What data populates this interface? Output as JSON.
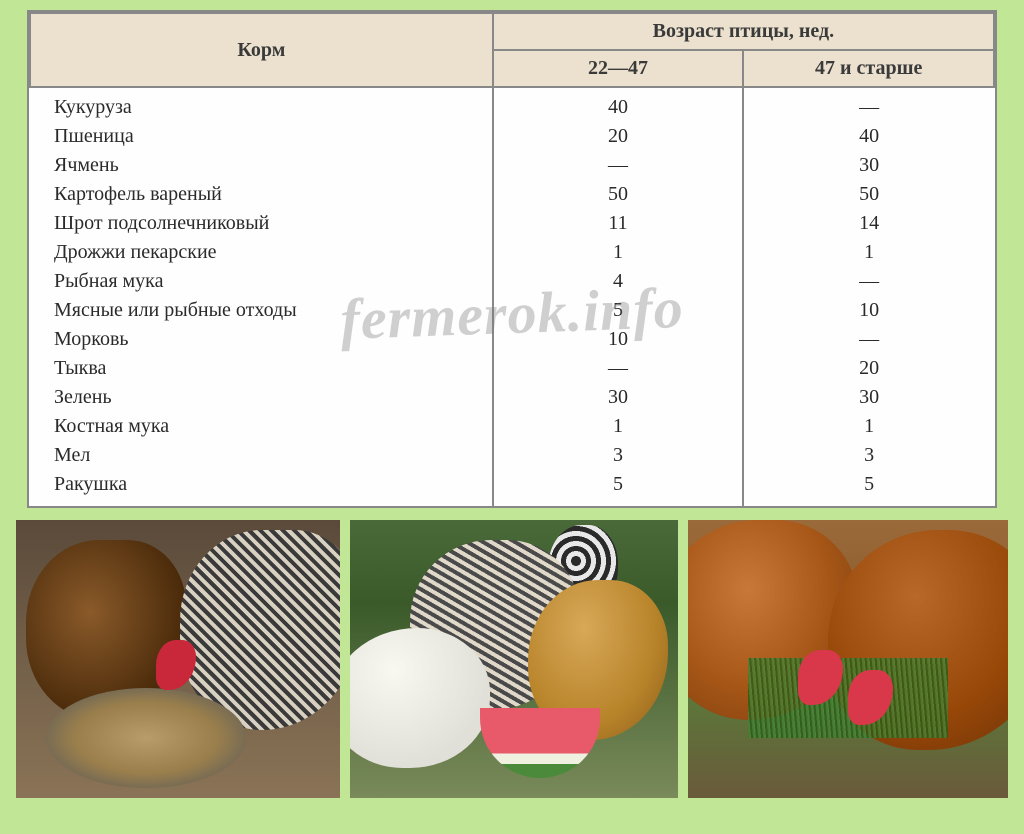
{
  "table": {
    "header_feed": "Корм",
    "header_age": "Возраст птицы, нед.",
    "header_col_a": "22—47",
    "header_col_b": "47 и старше",
    "rows": [
      {
        "name": "Кукуруза",
        "a": "40",
        "b": "—"
      },
      {
        "name": "Пшеница",
        "a": "20",
        "b": "40"
      },
      {
        "name": "Ячмень",
        "a": "—",
        "b": "30"
      },
      {
        "name": "Картофель вареный",
        "a": "50",
        "b": "50"
      },
      {
        "name": "Шрот подсолнечниковый",
        "a": "11",
        "b": "14"
      },
      {
        "name": "Дрожжи пекарские",
        "a": "1",
        "b": "1"
      },
      {
        "name": "Рыбная мука",
        "a": "4",
        "b": "—"
      },
      {
        "name": "Мясные или рыбные отходы",
        "a": "5",
        "b": "10"
      },
      {
        "name": "Морковь",
        "a": "10",
        "b": "—"
      },
      {
        "name": "Тыква",
        "a": "—",
        "b": "20"
      },
      {
        "name": "Зелень",
        "a": "30",
        "b": "30"
      },
      {
        "name": "Костная мука",
        "a": "1",
        "b": "1"
      },
      {
        "name": "Мел",
        "a": "3",
        "b": "3"
      },
      {
        "name": "Ракушка",
        "a": "5",
        "b": "5"
      }
    ]
  },
  "watermark": "fermerok.info",
  "colors": {
    "page_bg": "#c0e696",
    "table_bg": "#fefefe",
    "header_bg": "#ece1cf",
    "border": "#888888",
    "text": "#2a2a2a"
  }
}
